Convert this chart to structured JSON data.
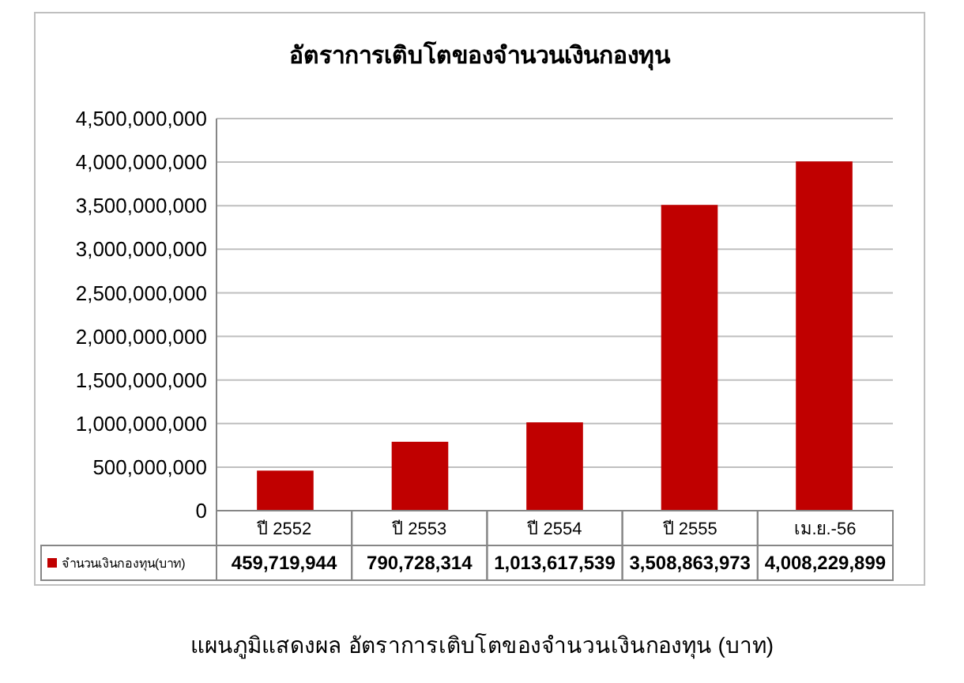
{
  "chart_data": {
    "type": "bar",
    "title": "อัตราการเติบโตของจำนวนเงินกองทุน",
    "categories": [
      "ปี 2552",
      "ปี 2553",
      "ปี 2554",
      "ปี 2555",
      "เม.ย.-56"
    ],
    "series": [
      {
        "name": "จำนวนเงินกองทุน(บาท)",
        "color": "#c00000",
        "values": [
          459719944,
          790728314,
          1013617539,
          3508863973,
          4008229899
        ]
      }
    ],
    "ylim": [
      0,
      4500000000
    ],
    "yticks": [
      {
        "value": 0,
        "label": "0"
      },
      {
        "value": 500000000,
        "label": "500,000,000"
      },
      {
        "value": 1000000000,
        "label": "1,000,000,000"
      },
      {
        "value": 1500000000,
        "label": "1,500,000,000"
      },
      {
        "value": 2000000000,
        "label": "2,000,000,000"
      },
      {
        "value": 2500000000,
        "label": "2,500,000,000"
      },
      {
        "value": 3000000000,
        "label": "3,000,000,000"
      },
      {
        "value": 3500000000,
        "label": "3,500,000,000"
      },
      {
        "value": 4000000000,
        "label": "4,000,000,000"
      },
      {
        "value": 4500000000,
        "label": "4,500,000,000"
      }
    ],
    "grid": "y",
    "value_labels": [
      "459,719,944",
      "790,728,314",
      "1,013,617,539",
      "3,508,863,973",
      "4,008,229,899"
    ],
    "legend": "bottom left",
    "annotations": [
      "แผนภูมิแสดงผล อัตราการเติบโตของจำนวนเงินกองทุน (บาท)"
    ]
  }
}
